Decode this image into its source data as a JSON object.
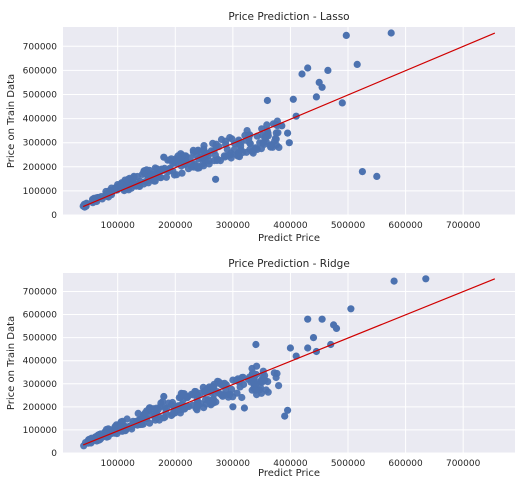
{
  "figure": {
    "background": "#ffffff"
  },
  "style": {
    "axes_background": "#eaeaf2",
    "grid_color": "#ffffff",
    "point_color": "#4c72b0",
    "line_color": "#d00000"
  },
  "chart_data": [
    {
      "id": "lasso",
      "type": "scatter",
      "title": "Price Prediction - Lasso",
      "xlabel": "Predict Price",
      "ylabel": "Price on Train Data",
      "xlim": [
        5000,
        790000
      ],
      "ylim": [
        0,
        780000
      ],
      "xticks": [
        100000,
        200000,
        300000,
        400000,
        500000,
        600000,
        700000
      ],
      "yticks": [
        0,
        100000,
        200000,
        300000,
        400000,
        500000,
        600000,
        700000
      ],
      "grid": true,
      "legend": "none",
      "fit_line": {
        "x": [
          40000,
          755000
        ],
        "y": [
          35000,
          755000
        ]
      },
      "outliers": [
        [
          575000,
          755000
        ],
        [
          497000,
          745000
        ],
        [
          516000,
          625000
        ],
        [
          430000,
          610000
        ],
        [
          420000,
          585000
        ],
        [
          450000,
          550000
        ],
        [
          455000,
          530000
        ],
        [
          490000,
          465000
        ],
        [
          465000,
          600000
        ],
        [
          360000,
          475000
        ],
        [
          445000,
          490000
        ],
        [
          405000,
          480000
        ],
        [
          525000,
          180000
        ],
        [
          550000,
          160000
        ],
        [
          410000,
          410000
        ],
        [
          385000,
          370000
        ],
        [
          395000,
          340000
        ],
        [
          398000,
          300000
        ],
        [
          270000,
          148000
        ],
        [
          180000,
          240000
        ]
      ],
      "bulk_band": [
        [
          40000,
          30000,
          45000
        ],
        [
          100000,
          90000,
          130000
        ],
        [
          200000,
          165000,
          250000
        ],
        [
          300000,
          235000,
          330000
        ],
        [
          380000,
          280000,
          420000
        ]
      ],
      "bulk_count": 260
    },
    {
      "id": "ridge",
      "type": "scatter",
      "title": "Price Prediction - Ridge",
      "xlabel": "Predict Price",
      "ylabel": "Price on Train Data",
      "xlim": [
        5000,
        790000
      ],
      "ylim": [
        0,
        780000
      ],
      "xticks": [
        100000,
        200000,
        300000,
        400000,
        500000,
        600000,
        700000
      ],
      "yticks": [
        0,
        100000,
        200000,
        300000,
        400000,
        500000,
        600000,
        700000
      ],
      "grid": true,
      "legend": "none",
      "fit_line": {
        "x": [
          40000,
          755000
        ],
        "y": [
          35000,
          755000
        ]
      },
      "outliers": [
        [
          635000,
          755000
        ],
        [
          580000,
          745000
        ],
        [
          505000,
          625000
        ],
        [
          475000,
          555000
        ],
        [
          480000,
          540000
        ],
        [
          455000,
          580000
        ],
        [
          430000,
          580000
        ],
        [
          440000,
          500000
        ],
        [
          470000,
          470000
        ],
        [
          445000,
          440000
        ],
        [
          340000,
          470000
        ],
        [
          400000,
          455000
        ],
        [
          410000,
          420000
        ],
        [
          395000,
          185000
        ],
        [
          390000,
          160000
        ],
        [
          300000,
          200000
        ],
        [
          320000,
          195000
        ],
        [
          180000,
          245000
        ],
        [
          130000,
          130000
        ],
        [
          430000,
          455000
        ]
      ],
      "bulk_band": [
        [
          40000,
          30000,
          45000
        ],
        [
          100000,
          85000,
          130000
        ],
        [
          200000,
          160000,
          250000
        ],
        [
          300000,
          230000,
          335000
        ],
        [
          380000,
          270000,
          420000
        ]
      ],
      "bulk_count": 260
    }
  ]
}
